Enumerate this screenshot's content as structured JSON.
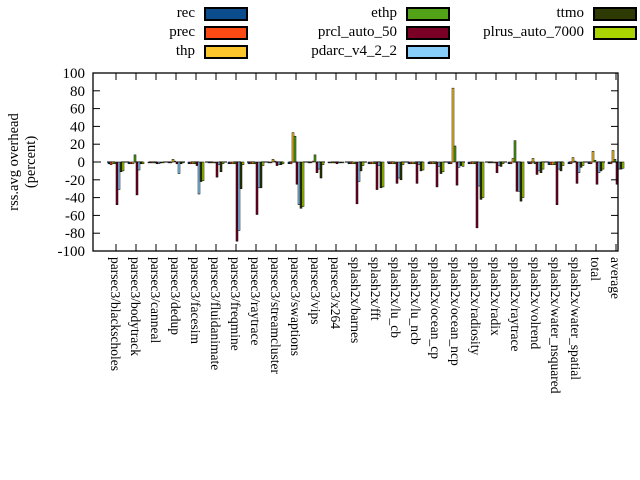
{
  "chart_data": {
    "type": "bar",
    "title": "",
    "ylabel_lines": [
      "rss.avg overhead",
      "(percent)"
    ],
    "ylim": [
      -100,
      100
    ],
    "ytick_step": 20,
    "grid": false,
    "zero_line": "dashed",
    "legend_position": "top",
    "categories": [
      "parsec3/blackscholes",
      "parsec3/bodytrack",
      "parsec3/canneal",
      "parsec3/dedup",
      "parsec3/facesim",
      "parsec3/fluidanimate",
      "parsec3/freqmine",
      "parsec3/raytrace",
      "parsec3/streamcluster",
      "parsec3/swaptions",
      "parsec3/vips",
      "parsec3/x264",
      "splash2x/barnes",
      "splash2x/fft",
      "splash2x/lu_cb",
      "splash2x/lu_ncb",
      "splash2x/ocean_cp",
      "splash2x/ocean_ncp",
      "splash2x/radiosity",
      "splash2x/radix",
      "splash2x/raytrace",
      "splash2x/volrend",
      "splash2x/water_nsquared",
      "splash2x/water_spatial",
      "total",
      "average"
    ],
    "series": [
      {
        "name": "rec",
        "color": "#0b4d8c",
        "values": [
          -2,
          -2,
          -1,
          -1,
          -2,
          -1,
          -2,
          -2,
          -1,
          -2,
          -1,
          -1,
          -2,
          -2,
          -2,
          -2,
          -2,
          -2,
          -2,
          -1,
          -2,
          -2,
          -3,
          -2,
          -2,
          -2
        ]
      },
      {
        "name": "prec",
        "color": "#fc4a14",
        "values": [
          -3,
          -2,
          -1,
          -1,
          -2,
          -1,
          -2,
          -2,
          -1,
          -2,
          -1,
          -1,
          -2,
          -2,
          -2,
          -2,
          -2,
          -2,
          -2,
          -1,
          -2,
          -2,
          -3,
          -2,
          -2,
          -2
        ]
      },
      {
        "name": "thp",
        "color": "#fcc52b",
        "values": [
          -2,
          -2,
          -1,
          3,
          -2,
          -1,
          -2,
          -2,
          3,
          33,
          1,
          -1,
          -2,
          -2,
          -2,
          -2,
          -2,
          83,
          -2,
          -1,
          4,
          4,
          -3,
          5,
          12,
          13
        ]
      },
      {
        "name": "ethp",
        "color": "#53a318",
        "values": [
          -2,
          8,
          -1,
          1,
          -2,
          -1,
          -2,
          -2,
          1,
          29,
          8,
          -1,
          -2,
          -2,
          -2,
          -2,
          -2,
          18,
          -2,
          -1,
          24,
          -2,
          -3,
          1,
          2,
          3
        ]
      },
      {
        "name": "prcl_auto_50",
        "color": "#7a0025",
        "values": [
          -48,
          -37,
          -2,
          -2,
          -4,
          -17,
          -89,
          -59,
          -4,
          -25,
          -12,
          -2,
          -47,
          -31,
          -24,
          -24,
          -28,
          -26,
          -74,
          -12,
          -33,
          -14,
          -48,
          -24,
          -25,
          -25
        ]
      },
      {
        "name": "pdarc_v4_2_2",
        "color": "#87cefa",
        "values": [
          -31,
          -9,
          -2,
          -13,
          -36,
          -3,
          -77,
          -29,
          -3,
          -48,
          -8,
          -1,
          -22,
          -4,
          -18,
          -3,
          -5,
          -6,
          -27,
          -4,
          -33,
          -10,
          -8,
          -12,
          -12,
          -8
        ]
      },
      {
        "name": "ttmo",
        "color": "#2e3a04",
        "values": [
          -11,
          -2,
          -1,
          -2,
          -22,
          -11,
          -30,
          -29,
          -3,
          -52,
          -18,
          -1,
          -10,
          -29,
          -20,
          -10,
          -13,
          -4,
          -42,
          -5,
          -44,
          -12,
          -10,
          -6,
          -10,
          -8
        ]
      },
      {
        "name": "plrus_auto_7000",
        "color": "#aad400",
        "values": [
          -10,
          -2,
          -1,
          -1,
          -21,
          -2,
          -3,
          -4,
          -2,
          -50,
          -3,
          -1,
          -4,
          -28,
          -3,
          -9,
          -11,
          -5,
          -40,
          -2,
          -40,
          -8,
          -4,
          -4,
          -8,
          -7
        ]
      }
    ],
    "legend_columns": [
      [
        "rec",
        "prec",
        "thp"
      ],
      [
        "ethp",
        "prcl_auto_50",
        "pdarc_v4_2_2"
      ],
      [
        "ttmo",
        "plrus_auto_7000"
      ]
    ]
  },
  "style": {
    "background": "#ffffff",
    "axis_color": "#000000",
    "bar_outline": "#000000"
  }
}
